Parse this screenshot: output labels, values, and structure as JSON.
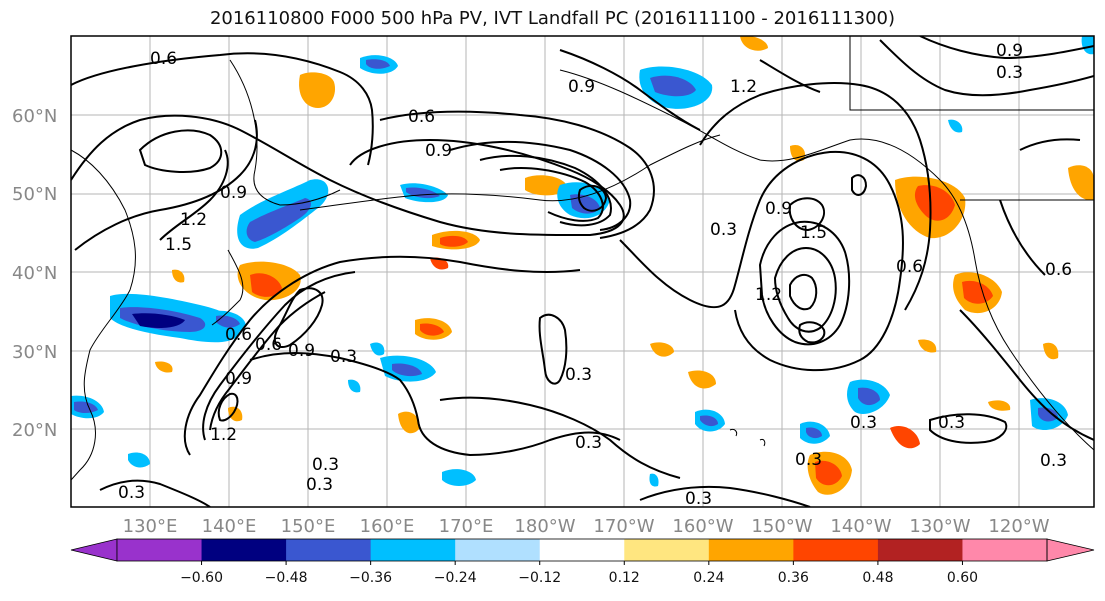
{
  "title": "2016110800 F000 500 hPa PV, IVT Landfall PC (2016111100 - 2016111300)",
  "map": {
    "lon_labels": [
      "130°E",
      "140°E",
      "150°E",
      "160°E",
      "170°E",
      "180°W",
      "170°W",
      "160°W",
      "150°W",
      "140°W",
      "130°W",
      "120°W"
    ],
    "lat_labels": [
      "60°N",
      "50°N",
      "40°N",
      "30°N",
      "20°N"
    ],
    "contour_labels": [
      "0.6",
      "0.9",
      "0.6",
      "0.9",
      "0.9",
      "1.2",
      "1.5",
      "1.2",
      "0.3",
      "0.9",
      "1.5",
      "1.2",
      "0.6",
      "0.9",
      "0.6",
      "1.2",
      "0.6",
      "0.9",
      "0.3",
      "0.3",
      "0.3",
      "0.3",
      "0.3",
      "0.3",
      "0.3",
      "0.3",
      "0.3",
      "0.3",
      "0.3",
      "0.9",
      "0.3",
      "0.6"
    ]
  },
  "colorbar": {
    "tick_labels": [
      "−0.60",
      "−0.48",
      "−0.36",
      "−0.24",
      "−0.12",
      "0.12",
      "0.24",
      "0.36",
      "0.48",
      "0.60"
    ],
    "colors": [
      "#9932cc",
      "#000080",
      "#3a57d0",
      "#00bfff",
      "#b0e0ff",
      "#ffffff",
      "#ffe680",
      "#ffa500",
      "#ff4500",
      "#b22222",
      "#ff88aa",
      "#ff88aa"
    ]
  }
}
